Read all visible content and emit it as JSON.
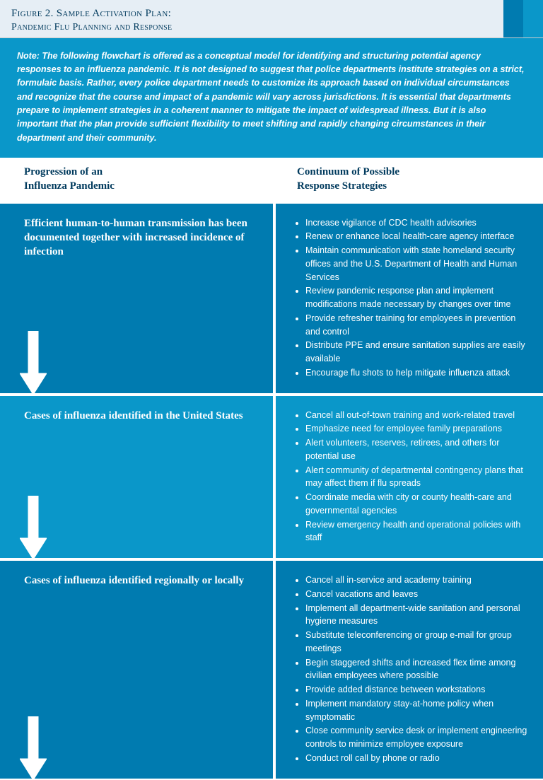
{
  "colors": {
    "primary": "#0a97c9",
    "accentDark": "#007bb0",
    "headerBg": "#e6eef5",
    "headerText": "#003a5d",
    "white": "#ffffff",
    "rowA": "#007bb0",
    "rowB": "#0a97c9",
    "rowC": "#007bb0"
  },
  "figure": {
    "title": "Figure 2. Sample Activation Plan:",
    "subtitle": "Pandemic Flu Planning and Response"
  },
  "note": "Note: The following flowchart is offered as a conceptual model for identifying and structuring potential agency responses to an influenza pandemic. It is not designed to suggest that police departments institute strategies on a strict, formulaic basis. Rather, every police department needs to customize its approach based on individual circumstances and recognize that the course and impact of a pandemic will vary across jurisdictions. It is essential that departments prepare to implement strategies in a coherent manner to mitigate the impact of widespread illness. But it is also important that the plan provide sufficient flexibility to meet shifting and rapidly changing circumstances in their department and their community.",
  "columns": {
    "left": "Progression of an\nInfluenza Pandemic",
    "right": "Continuum of Possible\nResponse Strategies"
  },
  "rows": [
    {
      "colorKey": "rowA",
      "stage": "Efficient human-to-human transmission has been documented together with increased incidence of infection",
      "bullets": [
        "Increase vigilance of CDC health advisories",
        "Renew or enhance local health-care agency interface",
        "Maintain communication with state homeland security offices and the U.S. Department of Health and Human Services",
        "Review pandemic response plan and implement modifications made necessary by changes over time",
        "Provide refresher training for employees in prevention and control",
        "Distribute PPE and ensure sanitation supplies are easily available",
        "Encourage flu shots to help mitigate influenza attack"
      ]
    },
    {
      "colorKey": "rowB",
      "stage": "Cases of influenza identified in the United States",
      "bullets": [
        "Cancel all out-of-town training and work-related travel",
        "Emphasize need for employee family preparations",
        "Alert volunteers, reserves, retirees, and others for potential use",
        "Alert community of departmental contingency plans that may affect them if flu spreads",
        "Coordinate media with city or county health-care and governmental agencies",
        "Review emergency health and operational policies with staff"
      ]
    },
    {
      "colorKey": "rowC",
      "stage": "Cases of influenza identified regionally or locally",
      "bullets": [
        "Cancel all in-service and academy training",
        "Cancel vacations and leaves",
        "Implement all department-wide sanitation and personal hygiene measures",
        "Substitute teleconferencing or group e-mail for group meetings",
        "Begin staggered shifts and increased flex time among civilian employees where possible",
        "Provide added distance between workstations",
        "Implement mandatory stay-at-home policy when symptomatic",
        "Close community service desk or implement engineering controls to minimize employee exposure",
        "Conduct roll call by phone or radio"
      ]
    }
  ],
  "arrow": {
    "fill": "#ffffff",
    "stroke": "#ffffff"
  }
}
